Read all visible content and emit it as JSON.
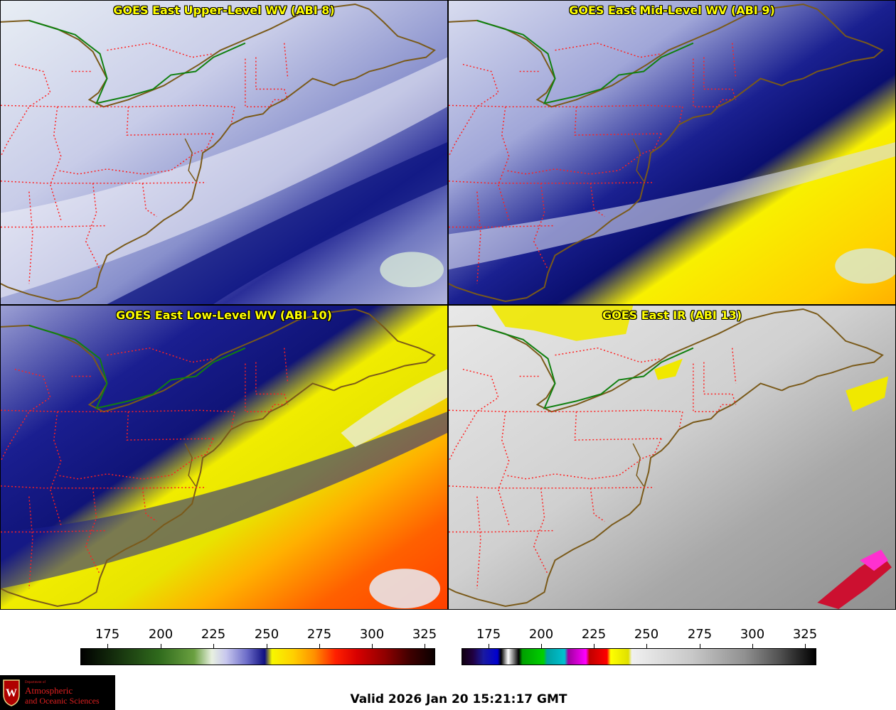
{
  "panels": [
    {
      "id": "upper",
      "title": "GOES East Upper-Level WV (ABI 8)"
    },
    {
      "id": "mid",
      "title": "GOES East Mid-Level WV (ABI 9)"
    },
    {
      "id": "low",
      "title": "GOES East Low-Level WV (ABI 10)"
    },
    {
      "id": "ir",
      "title": "GOES East IR (ABI 13)"
    }
  ],
  "colorbars": {
    "wv": {
      "ticks": [
        "175",
        "200",
        "225",
        "250",
        "275",
        "300",
        "325"
      ]
    },
    "ir": {
      "ticks": [
        "175",
        "200",
        "225",
        "250",
        "275",
        "300",
        "325"
      ]
    }
  },
  "footer": {
    "valid_time": "Valid 2026 Jan 20 15:21:17 GMT"
  },
  "logo": {
    "line1": "Department of",
    "line2": "Atmospheric",
    "line3": "and Oceanic Sciences"
  },
  "colors": {
    "title_text": "#ffff00",
    "state_borders": "#ff2020",
    "coastline": "#7a5a1a",
    "great_lakes_border": "#108010"
  }
}
